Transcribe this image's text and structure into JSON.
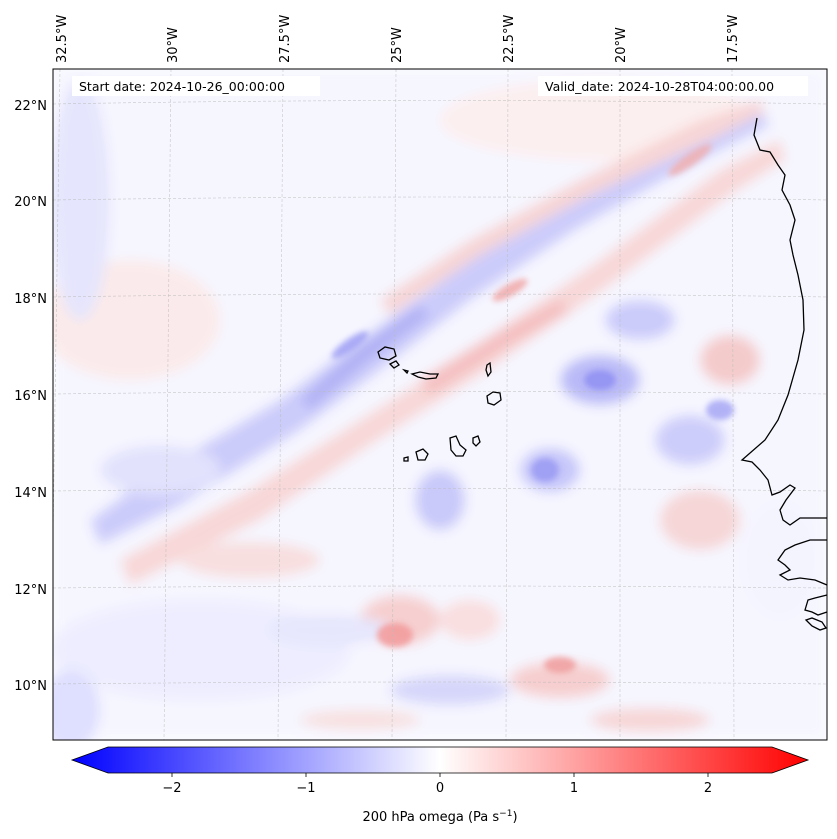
{
  "map": {
    "start_date": "Start date: 2024-10-26_00:00:00",
    "valid_date": "Valid_date: 2024-10-28T04:00:00.00",
    "lon_labels": [
      "32.5°W",
      "30°W",
      "27.5°W",
      "25°W",
      "22.5°W",
      "20°W",
      "17.5°W"
    ],
    "lat_labels": [
      "22°N",
      "20°N",
      "18°N",
      "16°N",
      "14°N",
      "12°N",
      "10°N"
    ],
    "gridlines": true
  },
  "colorbar": {
    "ticks": [
      "−2",
      "−1",
      "0",
      "1",
      "2"
    ],
    "label": "200 hPa omega (Pa s",
    "label_exp": "−1",
    "label_close": ")",
    "cmap": "bwr",
    "min_color": "#0000ff",
    "max_color": "#ff0000",
    "range": [
      -2.6,
      2.6
    ]
  }
}
